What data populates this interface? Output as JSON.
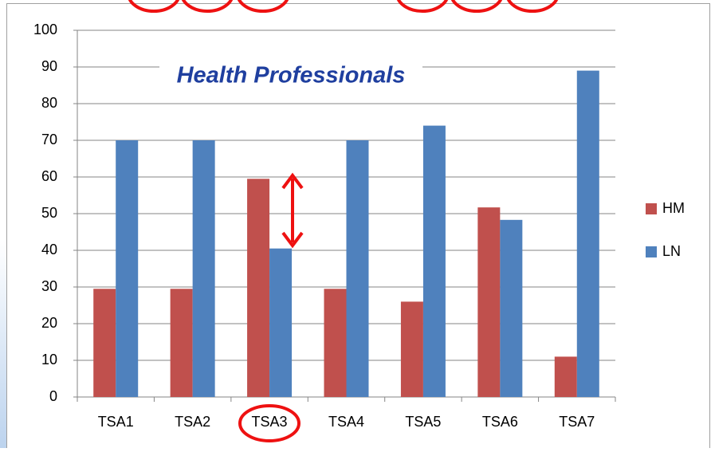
{
  "chart_data": {
    "type": "bar",
    "title": "Health Professionals",
    "categories": [
      "TSA1",
      "TSA2",
      "TSA3",
      "TSA4",
      "TSA5",
      "TSA6",
      "TSA7"
    ],
    "series": [
      {
        "name": "HM",
        "color": "#c0504d",
        "values": [
          29.5,
          29.5,
          59.5,
          29.5,
          26,
          51.7,
          11
        ]
      },
      {
        "name": "LN",
        "color": "#4f81bd",
        "values": [
          70,
          70,
          40.5,
          70,
          74,
          48.3,
          89
        ]
      }
    ],
    "ylim": [
      0,
      100
    ],
    "yticks": [
      0,
      10,
      20,
      30,
      40,
      50,
      60,
      70,
      80,
      90,
      100
    ],
    "grid": true,
    "legend": "right"
  }
}
